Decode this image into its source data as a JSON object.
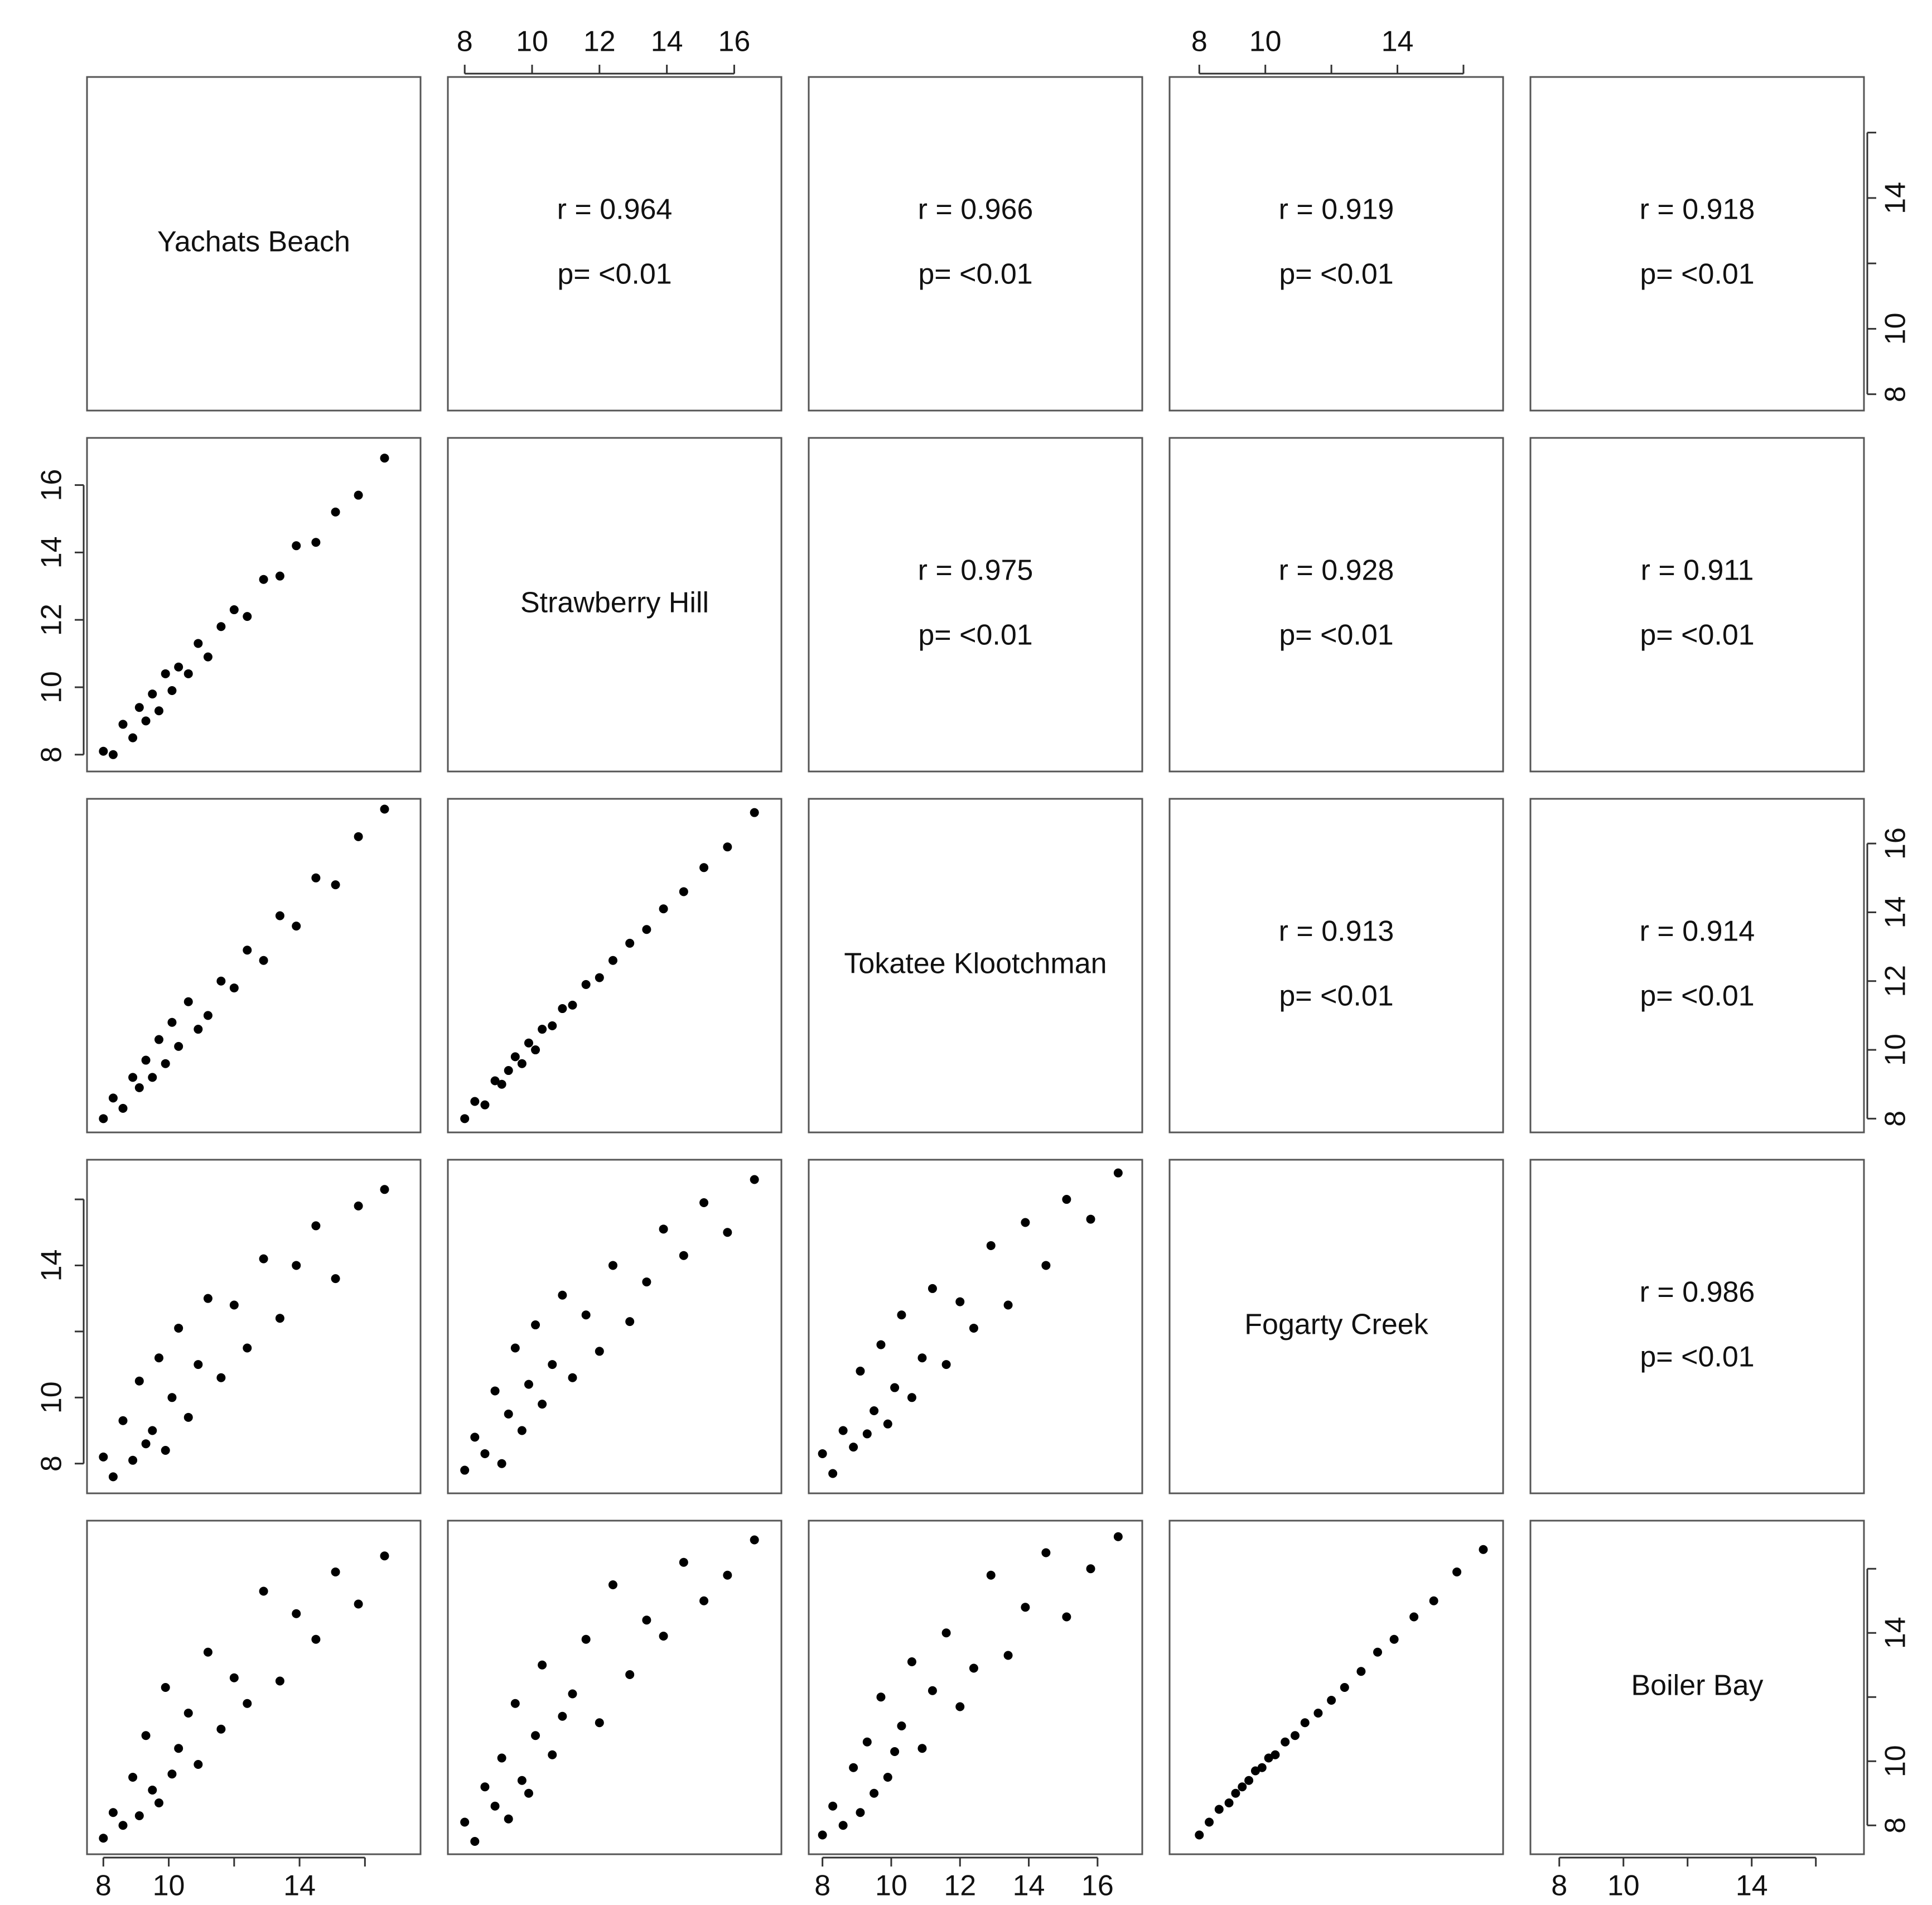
{
  "chart_data": {
    "type": "pairs",
    "variables": [
      {
        "name": "Yachats Beach",
        "lim": [
          7.5,
          17.7
        ],
        "ticks": [
          8,
          10,
          {
            "value": 12,
            "label": null
          },
          14,
          {
            "value": 16,
            "label": null
          }
        ]
      },
      {
        "name": "Strawberry Hill",
        "lim": [
          7.5,
          17.4
        ],
        "ticks": [
          8,
          10,
          12,
          14,
          16
        ]
      },
      {
        "name": "Tokatee Klootchman",
        "lim": [
          7.6,
          17.3
        ],
        "ticks": [
          8,
          10,
          12,
          14,
          16
        ]
      },
      {
        "name": "Fogarty Creek",
        "lim": [
          7.1,
          17.2
        ],
        "ticks": [
          8,
          10,
          {
            "value": 12,
            "label": null
          },
          14,
          {
            "value": 16,
            "label": null
          }
        ]
      },
      {
        "name": "Boiler Bay",
        "lim": [
          7.1,
          17.5
        ],
        "ticks": [
          8,
          10,
          {
            "value": 12,
            "label": null
          },
          14,
          {
            "value": 16,
            "label": null
          }
        ]
      }
    ],
    "correlations": [
      [
        {
          "r": "r = 0.964",
          "p": "p= <0.01"
        },
        {
          "r": "r = 0.966",
          "p": "p= <0.01"
        },
        {
          "r": "r = 0.919",
          "p": "p= <0.01"
        },
        {
          "r": "r = 0.918",
          "p": "p= <0.01"
        }
      ],
      [
        {
          "r": "r = 0.975",
          "p": "p= <0.01"
        },
        {
          "r": "r = 0.928",
          "p": "p= <0.01"
        },
        {
          "r": "r = 0.911",
          "p": "p= <0.01"
        }
      ],
      [
        {
          "r": "r = 0.913",
          "p": "p= <0.01"
        },
        {
          "r": "r = 0.914",
          "p": "p= <0.01"
        }
      ],
      [
        {
          "r": "r = 0.986",
          "p": "p= <0.01"
        }
      ]
    ],
    "point_color": "#000000",
    "scatter": [
      [
        {
          "x": [
            8.0,
            8.3,
            8.6,
            8.9,
            9.1,
            9.3,
            9.5,
            9.7,
            9.9,
            10.1,
            10.3,
            10.6,
            10.9,
            11.2,
            11.6,
            12.0,
            12.4,
            12.9,
            13.4,
            13.9,
            14.5,
            15.1,
            15.8,
            16.6
          ],
          "y": [
            8.1,
            8.0,
            8.9,
            8.5,
            9.4,
            9.0,
            9.8,
            9.3,
            10.4,
            9.9,
            10.6,
            10.4,
            11.3,
            10.9,
            11.8,
            12.3,
            12.1,
            13.2,
            13.3,
            14.2,
            14.3,
            15.2,
            15.7,
            16.8
          ]
        }
      ],
      [
        {
          "x": [
            8.0,
            8.3,
            8.6,
            8.9,
            9.1,
            9.3,
            9.5,
            9.7,
            9.9,
            10.1,
            10.3,
            10.6,
            10.9,
            11.2,
            11.6,
            12.0,
            12.4,
            12.9,
            13.4,
            13.9,
            14.5,
            15.1,
            15.8,
            16.6
          ],
          "y": [
            8.0,
            8.6,
            8.3,
            9.2,
            8.9,
            9.7,
            9.2,
            10.3,
            9.6,
            10.8,
            10.1,
            11.4,
            10.6,
            11.0,
            12.0,
            11.8,
            12.9,
            12.6,
            13.9,
            13.6,
            15.0,
            14.8,
            16.2,
            17.0
          ]
        },
        {
          "x": [
            8.0,
            8.3,
            8.6,
            8.9,
            9.1,
            9.3,
            9.5,
            9.7,
            9.9,
            10.1,
            10.3,
            10.6,
            10.9,
            11.2,
            11.6,
            12.0,
            12.4,
            12.9,
            13.4,
            13.9,
            14.5,
            15.1,
            15.8,
            16.6
          ],
          "y": [
            8.0,
            8.5,
            8.4,
            9.1,
            9.0,
            9.4,
            9.8,
            9.6,
            10.2,
            10.0,
            10.6,
            10.7,
            11.2,
            11.3,
            11.9,
            12.1,
            12.6,
            13.1,
            13.5,
            14.1,
            14.6,
            15.3,
            15.9,
            16.9
          ]
        }
      ],
      [
        {
          "x": [
            8.0,
            8.3,
            8.6,
            8.9,
            9.1,
            9.3,
            9.5,
            9.7,
            9.9,
            10.1,
            10.3,
            10.6,
            10.9,
            11.2,
            11.6,
            12.0,
            12.4,
            12.9,
            13.4,
            13.9,
            14.5,
            15.1,
            15.8,
            16.6
          ],
          "y": [
            8.2,
            7.6,
            9.3,
            8.1,
            10.5,
            8.6,
            9.0,
            11.2,
            8.4,
            10.0,
            12.1,
            9.4,
            11.0,
            13.0,
            10.6,
            12.8,
            11.5,
            14.2,
            12.4,
            14.0,
            15.2,
            13.6,
            15.8,
            16.3
          ]
        },
        {
          "x": [
            8.0,
            8.3,
            8.6,
            8.9,
            9.1,
            9.3,
            9.5,
            9.7,
            9.9,
            10.1,
            10.3,
            10.6,
            10.9,
            11.2,
            11.6,
            12.0,
            12.4,
            12.9,
            13.4,
            13.9,
            14.5,
            15.1,
            15.8,
            16.6
          ],
          "y": [
            7.8,
            8.8,
            8.3,
            10.2,
            8.0,
            9.5,
            11.5,
            9.0,
            10.4,
            12.2,
            9.8,
            11.0,
            13.1,
            10.6,
            12.5,
            11.4,
            14.0,
            12.3,
            13.5,
            15.1,
            14.3,
            15.9,
            15.0,
            16.6
          ]
        },
        {
          "x": [
            8.0,
            8.3,
            8.6,
            8.9,
            9.1,
            9.3,
            9.5,
            9.7,
            9.9,
            10.1,
            10.3,
            10.6,
            10.9,
            11.2,
            11.6,
            12.0,
            12.4,
            12.9,
            13.4,
            13.9,
            14.5,
            15.1,
            15.8,
            16.6
          ],
          "y": [
            8.3,
            7.7,
            9.0,
            8.5,
            10.8,
            8.9,
            9.6,
            11.6,
            9.2,
            10.3,
            12.5,
            10.0,
            11.2,
            13.3,
            11.0,
            12.9,
            12.1,
            14.6,
            12.8,
            15.3,
            14.0,
            16.0,
            15.4,
            16.8
          ]
        }
      ],
      [
        {
          "x": [
            8.0,
            8.3,
            8.6,
            8.9,
            9.1,
            9.3,
            9.5,
            9.7,
            9.9,
            10.1,
            10.3,
            10.6,
            10.9,
            11.2,
            11.6,
            12.0,
            12.4,
            12.9,
            13.4,
            13.9,
            14.5,
            15.1,
            15.8,
            16.6
          ],
          "y": [
            7.6,
            8.4,
            8.0,
            9.5,
            8.3,
            10.8,
            9.1,
            8.7,
            12.3,
            9.6,
            10.4,
            11.5,
            9.9,
            13.4,
            11.0,
            12.6,
            11.8,
            15.3,
            12.5,
            14.6,
            13.8,
            15.9,
            14.9,
            16.4
          ]
        },
        {
          "x": [
            8.0,
            8.3,
            8.6,
            8.9,
            9.1,
            9.3,
            9.5,
            9.7,
            9.9,
            10.1,
            10.3,
            10.6,
            10.9,
            11.2,
            11.6,
            12.0,
            12.4,
            12.9,
            13.4,
            13.9,
            14.5,
            15.1,
            15.8,
            16.6
          ],
          "y": [
            8.1,
            7.5,
            9.2,
            8.6,
            10.1,
            8.2,
            11.8,
            9.4,
            9.0,
            10.8,
            13.0,
            10.2,
            11.4,
            12.1,
            13.8,
            11.2,
            15.5,
            12.7,
            14.4,
            13.9,
            16.2,
            15.0,
            15.8,
            16.9
          ]
        },
        {
          "x": [
            8.0,
            8.3,
            8.6,
            8.9,
            9.1,
            9.3,
            9.5,
            9.7,
            9.9,
            10.1,
            10.3,
            10.6,
            10.9,
            11.2,
            11.6,
            12.0,
            12.4,
            12.9,
            13.4,
            13.9,
            14.5,
            15.1,
            15.8,
            16.6
          ],
          "y": [
            7.7,
            8.6,
            8.0,
            9.8,
            8.4,
            10.6,
            9.0,
            12.0,
            9.5,
            10.3,
            11.1,
            13.1,
            10.4,
            12.2,
            14.0,
            11.7,
            12.9,
            15.8,
            13.3,
            14.8,
            16.5,
            14.5,
            16.0,
            17.0
          ]
        },
        {
          "x": [
            8.0,
            8.3,
            8.6,
            8.9,
            9.1,
            9.3,
            9.5,
            9.7,
            9.9,
            10.1,
            10.3,
            10.6,
            10.9,
            11.2,
            11.6,
            12.0,
            12.4,
            12.9,
            13.4,
            13.9,
            14.5,
            15.1,
            15.8,
            16.6
          ],
          "y": [
            7.7,
            8.1,
            8.5,
            8.7,
            9.0,
            9.2,
            9.4,
            9.7,
            9.8,
            10.1,
            10.2,
            10.6,
            10.8,
            11.2,
            11.5,
            11.9,
            12.3,
            12.8,
            13.4,
            13.8,
            14.5,
            15.0,
            15.9,
            16.6
          ]
        }
      ]
    ]
  }
}
